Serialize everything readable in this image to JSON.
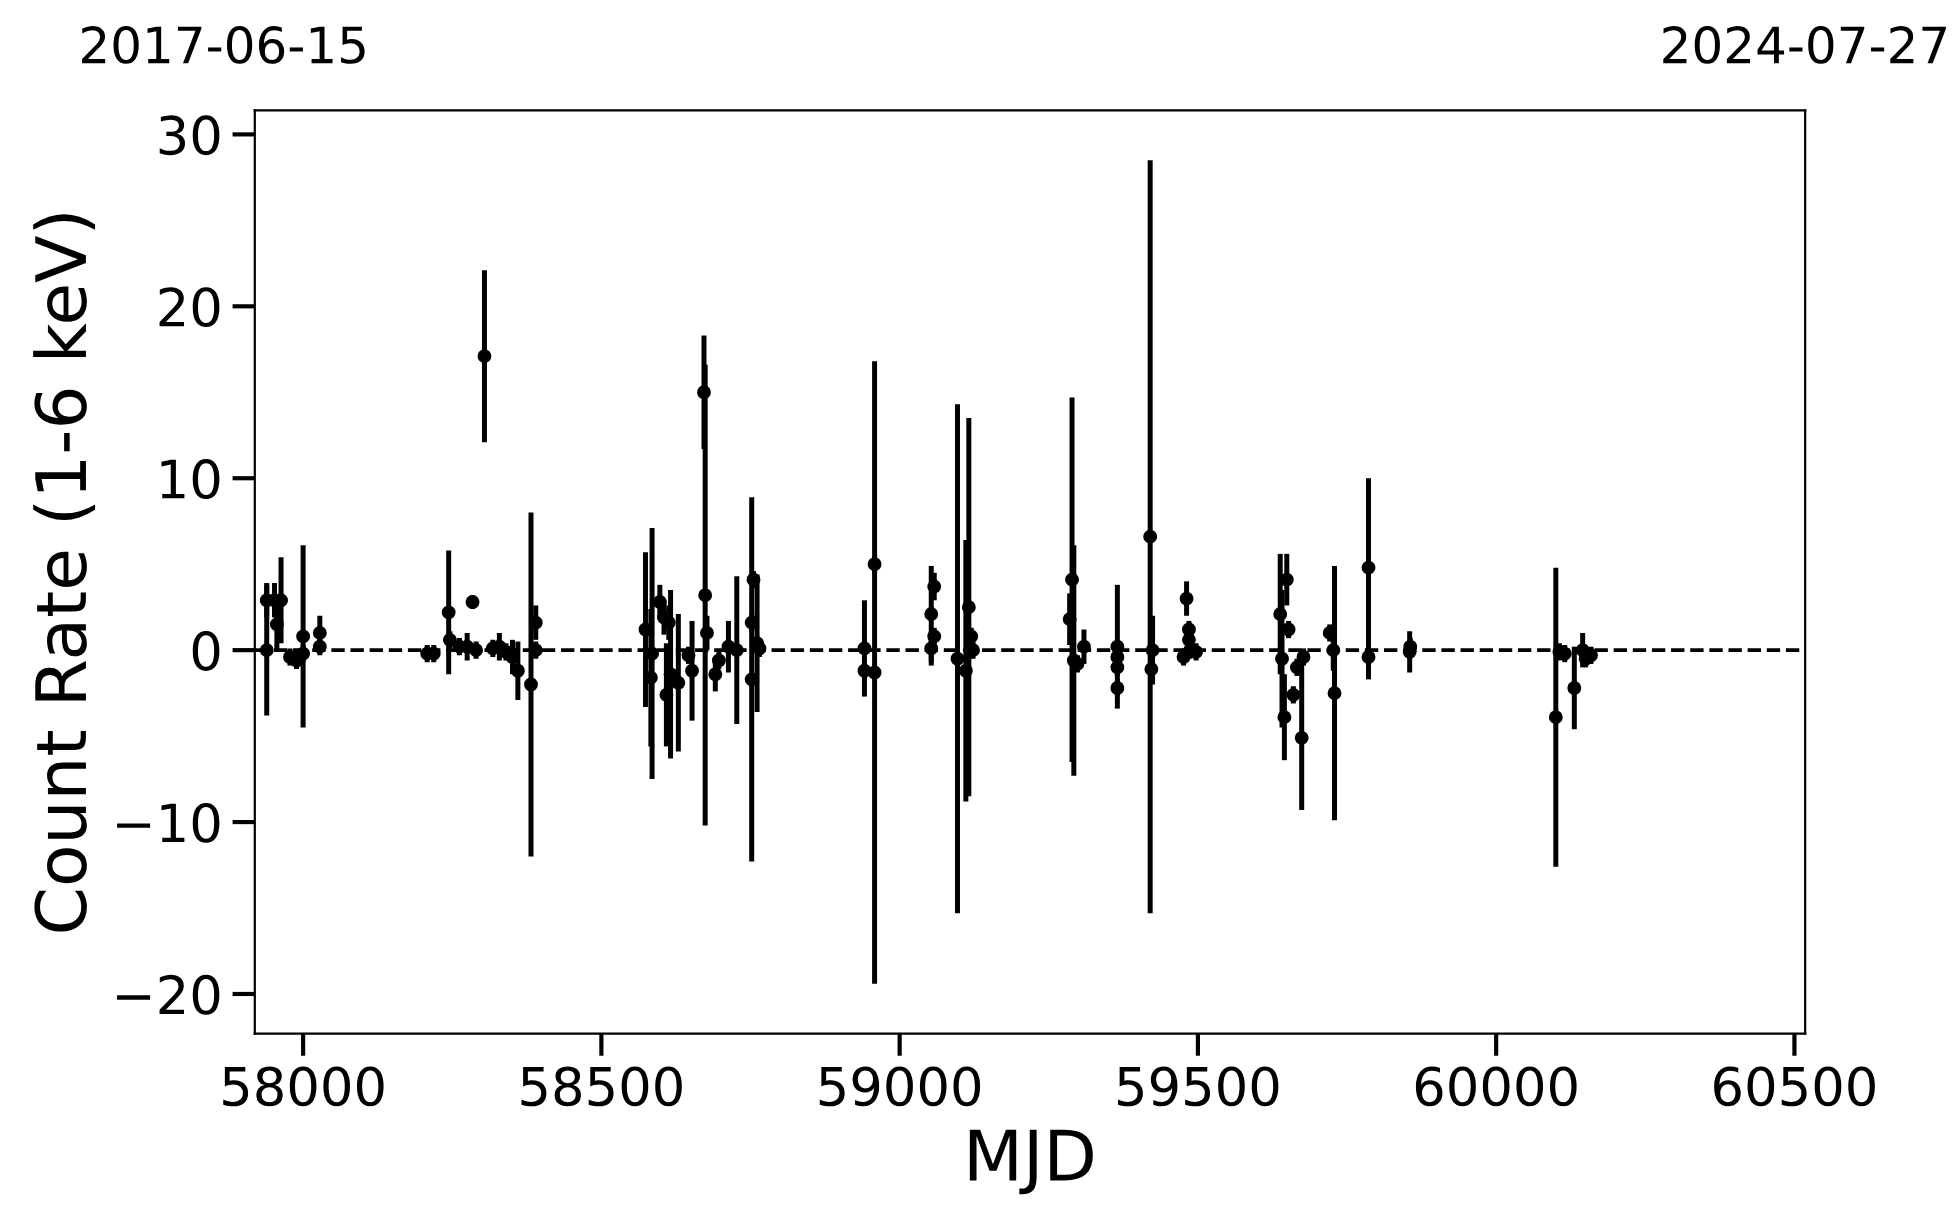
{
  "chart_data": {
    "type": "scatter",
    "xlabel": "MJD",
    "ylabel": "Count Rate (1-6 keV)",
    "xlim": [
      57919,
      60518
    ],
    "ylim": [
      -22.3,
      31.4
    ],
    "xticks": [
      58000,
      58500,
      59000,
      59500,
      60000,
      60500
    ],
    "yticks": [
      {
        "value": -20,
        "label": "−20"
      },
      {
        "value": -10,
        "label": "−10"
      },
      0,
      10,
      20,
      30
    ],
    "annotations": [
      "2017-06-15",
      "2024-07-27"
    ],
    "grid": false,
    "marker": "circle",
    "ref_lines": [
      {
        "axis": "y",
        "value": 0,
        "color": "#000000",
        "line_style": "dashed"
      }
    ],
    "series": [
      {
        "color": "#000000",
        "x": [
          57939,
          57939,
          57952,
          57956,
          57963,
          57978,
          57989,
          58000,
          58000,
          58028,
          58028,
          58208,
          58219,
          58244,
          58246,
          58262,
          58275,
          58284,
          58290,
          58304,
          58318,
          58329,
          58340,
          58351,
          58360,
          58382,
          58390,
          58390,
          58574,
          58583,
          58585,
          58598,
          58605,
          58609,
          58613,
          58616,
          58629,
          58646,
          58652,
          58672,
          58674,
          58677,
          58691,
          58697,
          58713,
          58727,
          58752,
          58752,
          58755,
          58761,
          58765,
          58941,
          58941,
          58958,
          58958,
          59053,
          59053,
          59058,
          59058,
          59097,
          59111,
          59116,
          59120,
          59123,
          59285,
          59289,
          59292,
          59298,
          59309,
          59365,
          59365,
          59365,
          59365,
          59420,
          59422,
          59424,
          59476,
          59481,
          59485,
          59485,
          59487,
          59497,
          59638,
          59641,
          59645,
          59649,
          59652,
          59660,
          59666,
          59674,
          59677,
          59721,
          59727,
          59729,
          59786,
          59786,
          59855,
          59856,
          60100,
          60106,
          60115,
          60131,
          60145,
          60150,
          60159
        ],
        "values": [
          2.9,
          0,
          2.9,
          1.5,
          2.9,
          -0.4,
          -0.6,
          0.8,
          -0.2,
          1.0,
          0.2,
          -0.2,
          -0.2,
          2.2,
          0.6,
          0.2,
          0.2,
          2.8,
          0,
          17.1,
          0.1,
          0.2,
          -0.1,
          -0.4,
          -1.2,
          -2.0,
          1.6,
          0,
          1.2,
          -1.6,
          -0.2,
          2.8,
          1.9,
          -2.6,
          1.6,
          -1.4,
          -1.9,
          -0.3,
          -1.2,
          15.0,
          3.2,
          1.0,
          -1.4,
          -0.6,
          0.2,
          0,
          -1.7,
          1.6,
          4.1,
          0.4,
          0.1,
          0.1,
          -1.2,
          -1.3,
          5.0,
          0.1,
          2.1,
          3.7,
          0.8,
          -0.5,
          -1.2,
          2.5,
          0.8,
          0,
          1.8,
          4.1,
          -0.6,
          -0.8,
          0.2,
          0.2,
          -0.4,
          -1.0,
          -2.2,
          6.6,
          -1.1,
          0,
          -0.4,
          3.0,
          1.2,
          0.6,
          0,
          -0.1,
          2.1,
          -0.5,
          -3.9,
          4.1,
          1.2,
          -2.6,
          -1.0,
          -5.1,
          -0.4,
          1.0,
          0,
          -2.5,
          4.8,
          -0.4,
          -0.1,
          0.2,
          -3.9,
          -0.1,
          -0.2,
          -2.2,
          0,
          -0.5,
          -0.3
        ],
        "errors": [
          1.0,
          3.8,
          1.0,
          1.5,
          2.5,
          0.5,
          0.5,
          5.3,
          0.5,
          1.0,
          0.5,
          0.5,
          0.5,
          3.6,
          0.5,
          0.5,
          0.8,
          0.4,
          0.5,
          5.0,
          0.5,
          0.8,
          0.5,
          1.0,
          1.7,
          10.0,
          1.0,
          0.5,
          4.5,
          4.0,
          7.3,
          1.0,
          1.0,
          3.0,
          1.0,
          4.9,
          4.0,
          0.5,
          2.9,
          3.3,
          13.4,
          1.0,
          1.0,
          0.5,
          1.5,
          4.3,
          10.6,
          0.5,
          0.5,
          4.0,
          0.5,
          2.8,
          0.5,
          18.1,
          0.5,
          1.0,
          2.8,
          0.8,
          0.5,
          14.8,
          7.6,
          11.0,
          0.5,
          0.5,
          1.5,
          10.6,
          6.7,
          0.5,
          1.0,
          3.6,
          0.5,
          0.5,
          0.5,
          21.9,
          0.5,
          2.0,
          0.5,
          1.0,
          0.5,
          0.5,
          0.5,
          0.5,
          3.5,
          4.0,
          2.5,
          1.5,
          0.5,
          0.5,
          0.5,
          4.2,
          0.5,
          0.5,
          1.2,
          7.4,
          5.2,
          1.3,
          1.2,
          0.5,
          8.7,
          0.5,
          0.5,
          2.4,
          1.0,
          0.5,
          0.5
        ]
      }
    ]
  }
}
